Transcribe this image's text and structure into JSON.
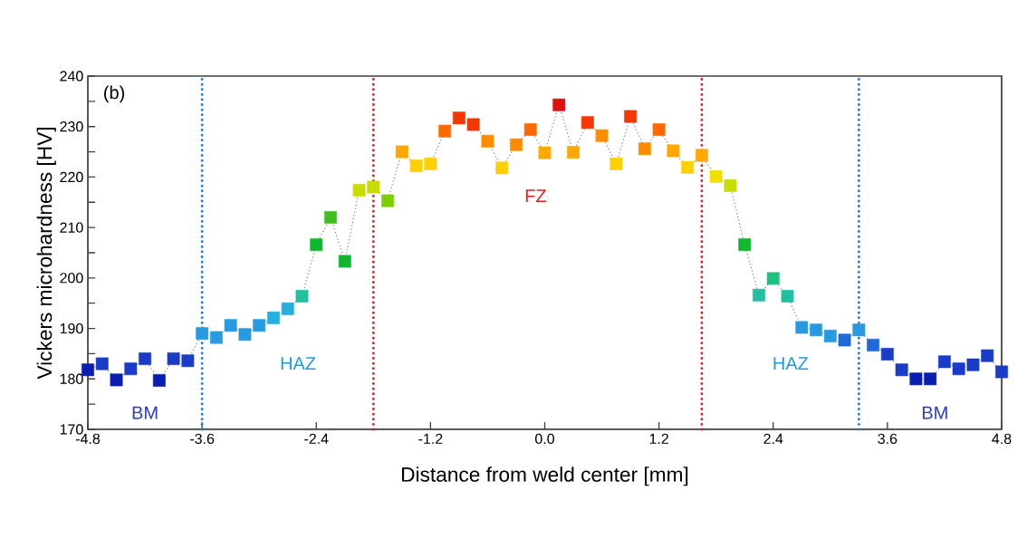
{
  "chart_data": {
    "type": "line",
    "xlabel": "Distance from weld center [mm]",
    "ylabel": "Vickers microhardness [HV]",
    "xlim": [
      -4.8,
      4.8
    ],
    "ylim": [
      170,
      240
    ],
    "xticks": [
      -4.8,
      -3.6,
      -2.4,
      -1.2,
      {
        "value": 0,
        "label": "0.0"
      },
      1.2,
      2.4,
      3.6,
      4.8
    ],
    "yticks": [
      170,
      {
        "value": 175,
        "label": null
      },
      180,
      {
        "value": 185,
        "label": null
      },
      190,
      {
        "value": 195,
        "label": null
      },
      200,
      {
        "value": 205,
        "label": null
      },
      210,
      {
        "value": 215,
        "label": null
      },
      220,
      {
        "value": 225,
        "label": null
      },
      230,
      {
        "value": 235,
        "label": null
      },
      240
    ],
    "marker": "square",
    "line_style": "dotted",
    "series": [
      {
        "color": "#808080",
        "x": [
          -4.8,
          -4.65,
          -4.5,
          -4.35,
          -4.2,
          -4.05,
          -3.9,
          -3.75,
          -3.6,
          -3.45,
          -3.3,
          -3.15,
          -3.0,
          -2.85,
          -2.7,
          -2.55,
          -2.4,
          -2.25,
          -2.1,
          -1.95,
          -1.8,
          -1.65,
          -1.5,
          -1.35,
          -1.2,
          -1.05,
          -0.9,
          -0.75,
          -0.6,
          -0.45,
          -0.3,
          -0.15,
          0.0,
          0.15,
          0.3,
          0.45,
          0.6,
          0.75,
          0.9,
          1.05,
          1.2,
          1.35,
          1.5,
          1.65,
          1.8,
          1.95,
          2.1,
          2.25,
          2.4,
          2.55,
          2.7,
          2.85,
          3.0,
          3.15,
          3.3,
          3.45,
          3.6,
          3.75,
          3.9,
          4.05,
          4.2,
          4.35,
          4.5,
          4.65,
          4.8
        ],
        "values": [
          181.8,
          183.0,
          179.8,
          182.0,
          184.0,
          179.7,
          184.0,
          183.6,
          189.0,
          188.2,
          190.6,
          188.8,
          190.6,
          192.1,
          193.9,
          196.4,
          206.6,
          212.0,
          203.3,
          217.4,
          218.0,
          215.3,
          225.0,
          222.2,
          222.6,
          229.1,
          231.7,
          230.4,
          227.1,
          221.8,
          226.4,
          229.4,
          224.8,
          234.3,
          224.9,
          230.8,
          228.2,
          222.6,
          232.0,
          225.6,
          229.4,
          225.2,
          221.9,
          224.3,
          220.1,
          218.3,
          206.6,
          196.6,
          199.9,
          196.4,
          190.2,
          189.7,
          188.5,
          187.7,
          189.7,
          186.7,
          184.9,
          181.8,
          180.0,
          180.0,
          183.4,
          182.0,
          182.8,
          184.6,
          181.4
        ],
        "colors": [
          "#0a1fb0",
          "#1a3cc8",
          "#0a1fb0",
          "#1a3cc8",
          "#1a3cc8",
          "#0a1fb0",
          "#1a3cc8",
          "#1a3cc8",
          "#2a9ae0",
          "#2a9ae0",
          "#2a9ae0",
          "#2a9ae0",
          "#2a9ae0",
          "#25aee0",
          "#25aee0",
          "#22c0a0",
          "#10b830",
          "#40c020",
          "#10b830",
          "#c8dc00",
          "#c8dc00",
          "#7ad000",
          "#ffa800",
          "#ffd000",
          "#ffd000",
          "#ff6a00",
          "#f03800",
          "#f03800",
          "#ff8c00",
          "#ffd000",
          "#ff8c00",
          "#ff6a00",
          "#ffa800",
          "#e01010",
          "#ffa800",
          "#f03800",
          "#ff8c00",
          "#ffd000",
          "#f03800",
          "#ff8c00",
          "#ff6a00",
          "#ffa800",
          "#ffd000",
          "#ffa800",
          "#f0e000",
          "#c8dc00",
          "#10b830",
          "#22c0a0",
          "#20c080",
          "#22c0a0",
          "#2a9ae0",
          "#2a9ae0",
          "#2a9ae0",
          "#1f6ad8",
          "#2a9ae0",
          "#1f6ad8",
          "#1a3cc8",
          "#1a3cc8",
          "#0a1fb0",
          "#0a1fb0",
          "#1a3cc8",
          "#1a3cc8",
          "#1a3cc8",
          "#1a3cc8",
          "#1a3cc8"
        ]
      }
    ],
    "ref_lines": [
      {
        "axis": "x",
        "value": -3.6,
        "color": "#1e7be0",
        "line_style": "dotted"
      },
      {
        "axis": "x",
        "value": -1.8,
        "color": "#e02020",
        "line_style": "dotted"
      },
      {
        "axis": "x",
        "value": 1.65,
        "color": "#e02020",
        "line_style": "dotted"
      },
      {
        "axis": "x",
        "value": 3.3,
        "color": "#1e7be0",
        "line_style": "dotted"
      }
    ],
    "annotations": [
      "(b)",
      "BM",
      "HAZ",
      "FZ",
      "HAZ",
      "BM"
    ]
  }
}
